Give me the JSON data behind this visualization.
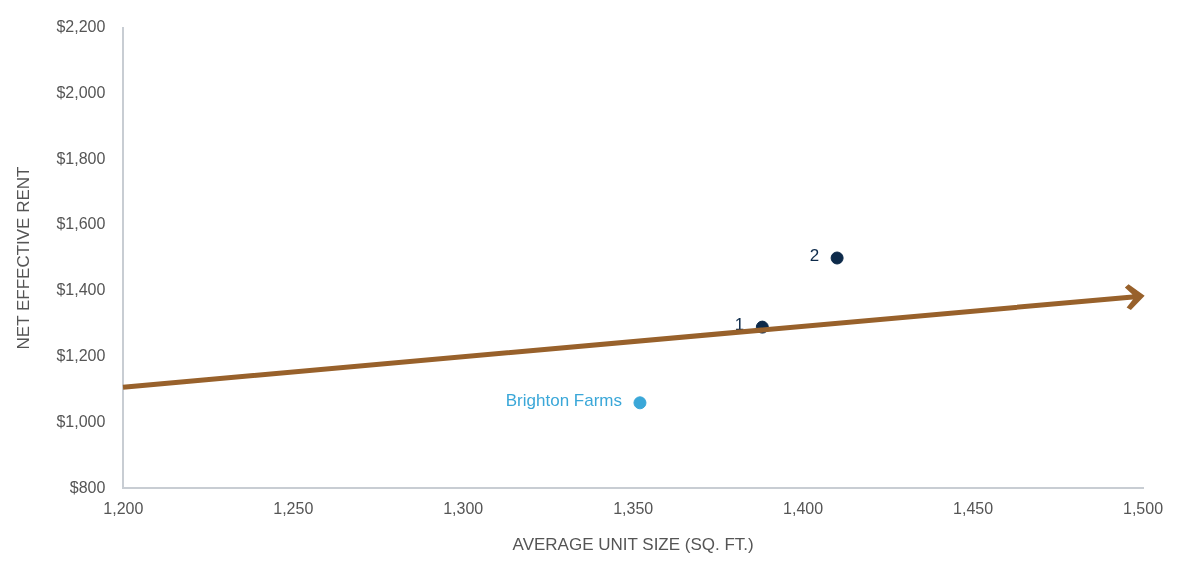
{
  "chart_data": {
    "type": "scatter",
    "xlabel": "AVERAGE UNIT SIZE (SQ. FT.)",
    "ylabel": "NET EFFECTIVE RENT",
    "xlim": [
      1200,
      1500
    ],
    "xticks": [
      {
        "value": 1200,
        "label": "1,200"
      },
      {
        "value": 1250,
        "label": "1,250"
      },
      {
        "value": 1300,
        "label": "1,300"
      },
      {
        "value": 1350,
        "label": "1,350"
      },
      {
        "value": 1400,
        "label": "1,400"
      },
      {
        "value": 1450,
        "label": "1,450"
      },
      {
        "value": 1500,
        "label": "1,500"
      }
    ],
    "ylim": [
      800,
      2200
    ],
    "yticks": [
      {
        "value": 800,
        "label": "$800"
      },
      {
        "value": 1000,
        "label": "$1,000"
      },
      {
        "value": 1200,
        "label": "$1,200"
      },
      {
        "value": 1400,
        "label": "$1,400"
      },
      {
        "value": 1600,
        "label": "$1,600"
      },
      {
        "value": 1800,
        "label": "$1,800"
      },
      {
        "value": 2000,
        "label": "$2,000"
      },
      {
        "value": 2200,
        "label": "$2,200"
      }
    ],
    "grid": false,
    "legend": false,
    "marker": "circle",
    "series": [
      {
        "name": "1",
        "color": "#0d2a4a",
        "x": [
          1388
        ],
        "values": [
          1290
        ]
      },
      {
        "name": "2",
        "color": "#0d2a4a",
        "x": [
          1410
        ],
        "values": [
          1500
        ]
      },
      {
        "name": "Brighton Farms",
        "color": "#3aa7d8",
        "x": [
          1352
        ],
        "values": [
          1060
        ]
      }
    ]
  }
}
